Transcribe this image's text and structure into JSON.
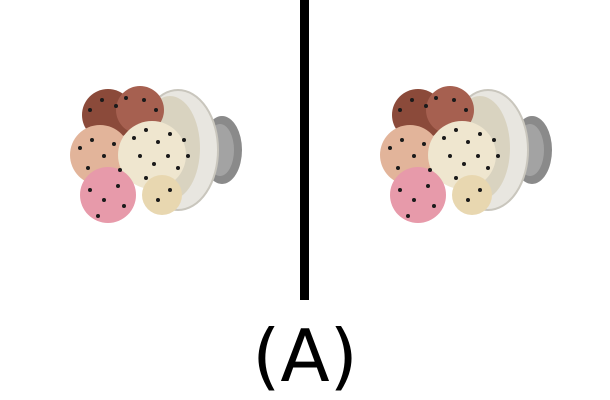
{
  "caption": "(A)",
  "panels": [
    {
      "subject": "ice-cream-bowl-with-ants"
    },
    {
      "subject": "ice-cream-bowl-with-ants"
    }
  ],
  "colors": {
    "divider": "#000000",
    "background": "#ffffff",
    "bowl": "#e8e6e0",
    "handle": "#8a8a8a",
    "scoop_chocolate": "#8b4a3a",
    "scoop_peach": "#e2b49a",
    "scoop_vanilla": "#efe6cf",
    "scoop_strawberry": "#e79aaa",
    "ant": "#1a1a1a"
  }
}
